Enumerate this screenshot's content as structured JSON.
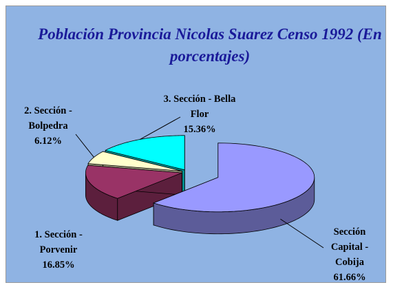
{
  "chart_data": {
    "type": "pie3d",
    "title": "Población Provincia Nicolas Suarez Censo 1992 (En porcentajes)",
    "categories": [
      "Sección Capital - Cobija",
      "1. Sección - Porvenir",
      "2. Sección - Bolpedra",
      "3. Sección - Bella Flor"
    ],
    "values": [
      61.66,
      16.85,
      6.12,
      15.36
    ],
    "value_labels": [
      "61.66%",
      "16.85%",
      "6.12%",
      "15.36%"
    ],
    "colors": [
      "#9999ff",
      "#993366",
      "#ffffcc",
      "#00ffff"
    ]
  }
}
